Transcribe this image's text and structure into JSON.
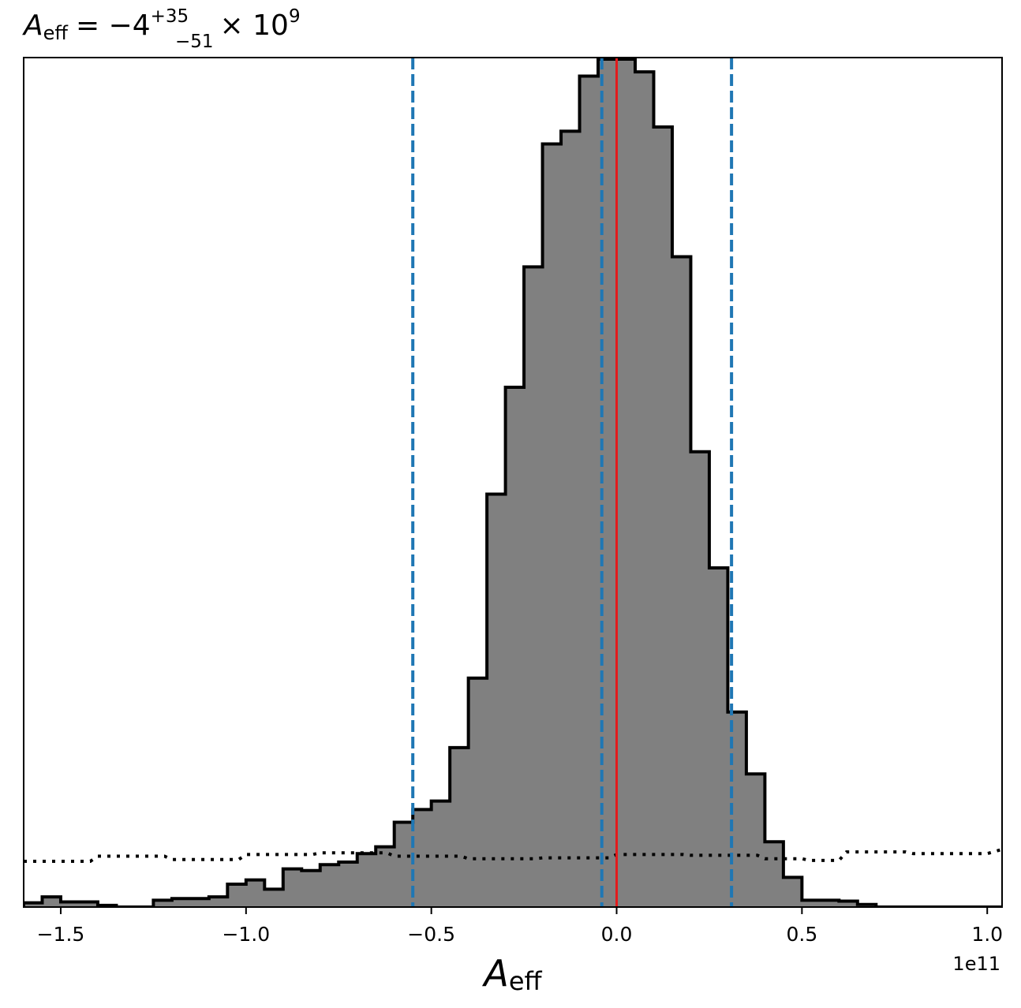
{
  "chart_data": {
    "type": "histogram",
    "title": {
      "symbol": "A",
      "subscript": "eff",
      "equals": "= −4",
      "sup": "+35",
      "sub": "−51",
      "tail": "× 10",
      "power": "9"
    },
    "xlabel": {
      "symbol": "A",
      "subscript": "eff"
    },
    "offset_text": "1e11",
    "xlim": [
      -160000000000.0,
      104000000000.0
    ],
    "ylim": [
      0,
      1.0
    ],
    "x_ticks": [
      -150000000000.0,
      -100000000000.0,
      -50000000000.0,
      0,
      50000000000.0,
      100000000000.0
    ],
    "x_tick_labels": [
      "−1.5",
      "−1.0",
      "−0.5",
      "0.0",
      "0.5",
      "1.0"
    ],
    "y_ticks_shown": false,
    "bin_edges": [
      -160000000000.0,
      -155000000000.0,
      -150000000000.0,
      -145000000000.0,
      -140000000000.0,
      -135000000000.0,
      -130000000000.0,
      -125000000000.0,
      -120000000000.0,
      -115000000000.0,
      -110000000000.0,
      -105000000000.0,
      -100000000000.0,
      -95000000000.0,
      -90000000000.0,
      -85000000000.0,
      -80000000000.0,
      -75000000000.0,
      -70000000000.0,
      -65000000000.0,
      -60000000000.0,
      -55000000000.0,
      -50000000000.0,
      -45000000000.0,
      -40000000000.0,
      -35000000000.0,
      -30000000000.0,
      -25000000000.0,
      -20000000000.0,
      -15000000000.0,
      -10000000000.0,
      -5000000000.0,
      0,
      5000000000.0,
      10000000000.0,
      15000000000.0,
      20000000000.0,
      25000000000.0,
      30000000000.0,
      35000000000.0,
      40000000000.0,
      45000000000.0,
      50000000000.0,
      55000000000.0,
      60000000000.0,
      65000000000.0,
      70000000000.0,
      75000000000.0,
      80000000000.0,
      85000000000.0,
      90000000000.0,
      95000000000.0,
      100000000000.0,
      104000000000.0
    ],
    "counts": [
      0.005,
      0.012,
      0.006,
      0.006,
      0.002,
      0.0,
      0.0,
      0.008,
      0.01,
      0.01,
      0.012,
      0.027,
      0.032,
      0.021,
      0.045,
      0.043,
      0.05,
      0.053,
      0.063,
      0.071,
      0.1,
      0.115,
      0.125,
      0.188,
      0.27,
      0.487,
      0.613,
      0.755,
      0.9,
      0.915,
      0.98,
      1.0,
      1.0,
      0.985,
      0.92,
      0.767,
      0.537,
      0.4,
      0.23,
      0.157,
      0.077,
      0.035,
      0.008,
      0.008,
      0.007,
      0.003,
      0.0,
      0.0,
      0.0,
      0.0,
      0.0,
      0.0,
      0.0
    ],
    "prior_curve": {
      "style": "dotted",
      "x": [
        -160000000000.0,
        -142000000000.0,
        -140000000000.0,
        -122000000000.0,
        -120000000000.0,
        -102000000000.0,
        -100000000000.0,
        -82000000000.0,
        -80000000000.0,
        -62000000000.0,
        -60000000000.0,
        -42000000000.0,
        -40000000000.0,
        -22000000000.0,
        -20000000000.0,
        -2000000000.0,
        0,
        18000000000.0,
        20000000000.0,
        38000000000.0,
        40000000000.0,
        50000000000.0,
        52000000000.0,
        60000000000.0,
        62000000000.0,
        78000000000.0,
        80000000000.0,
        100000000000.0,
        104000000000.0
      ],
      "y": [
        0.054,
        0.054,
        0.06,
        0.06,
        0.056,
        0.056,
        0.062,
        0.062,
        0.064,
        0.064,
        0.06,
        0.06,
        0.057,
        0.057,
        0.058,
        0.058,
        0.062,
        0.062,
        0.061,
        0.061,
        0.057,
        0.057,
        0.055,
        0.055,
        0.065,
        0.065,
        0.063,
        0.063,
        0.068
      ]
    },
    "vlines": [
      {
        "x": -55000000000.0,
        "style": "dashed",
        "color": "#1f77b4"
      },
      {
        "x": -4000000000.0,
        "style": "dashed",
        "color": "#1f77b4"
      },
      {
        "x": 31000000000.0,
        "style": "dashed",
        "color": "#1f77b4"
      },
      {
        "x": 0.0,
        "style": "solid",
        "color": "#e41a1c"
      }
    ],
    "colors": {
      "fill": "#808080",
      "edge": "#000000",
      "dashed": "#1f77b4",
      "truth": "#e41a1c"
    },
    "grid": false,
    "legend": false
  }
}
